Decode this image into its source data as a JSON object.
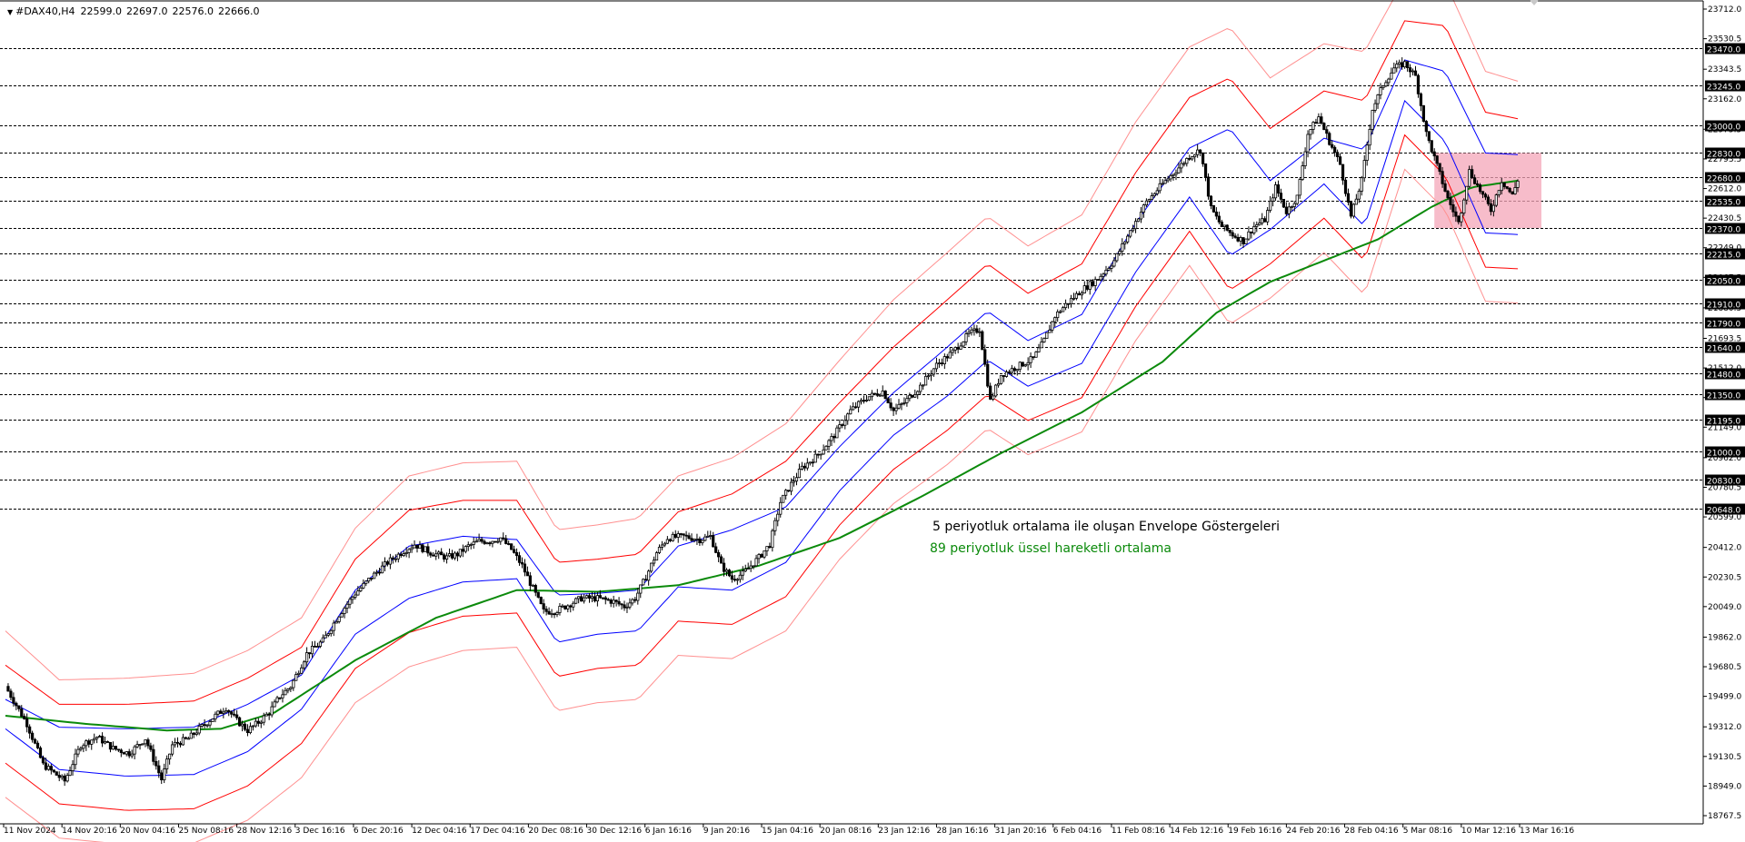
{
  "header": {
    "symbol": "#DAX40,H4",
    "open": "22599.0",
    "high": "22697.0",
    "low": "22576.0",
    "close": "22666.0"
  },
  "annotations": {
    "envelope": "5 periyotluk ortalama ile oluşan Envelope Göstergeleri",
    "ema": "89 periyotluk üssel hareketli ortalama"
  },
  "colors": {
    "price": "#000000",
    "ema": "#0b8a0b",
    "envelope_inner": "#0000ff",
    "envelope_mid": "#ff0000",
    "envelope_outer": "#ff9090",
    "zone": "#f4a6b8",
    "level_line": "#000000"
  },
  "chart_data": {
    "type": "line",
    "x_tick_labels": [
      "11 Nov 2024",
      "14 Nov 20:16",
      "20 Nov 04:16",
      "25 Nov 08:16",
      "28 Nov 12:16",
      "3 Dec 16:16",
      "6 Dec 20:16",
      "12 Dec 04:16",
      "17 Dec 04:16",
      "20 Dec 08:16",
      "30 Dec 12:16",
      "6 Jan 16:16",
      "9 Jan 20:16",
      "15 Jan 04:16",
      "20 Jan 08:16",
      "23 Jan 12:16",
      "28 Jan 16:16",
      "31 Jan 20:16",
      "6 Feb 04:16",
      "11 Feb 08:16",
      "14 Feb 12:16",
      "19 Feb 16:16",
      "24 Feb 20:16",
      "28 Feb 04:16",
      "5 Mar 08:16",
      "10 Mar 12:16",
      "13 Mar 16:16"
    ],
    "y_tick_labels": [
      "23712.0",
      "23530.5",
      "23343.5",
      "23162.0",
      "22975.5",
      "22793.5",
      "22612.0",
      "22430.5",
      "22249.0",
      "22067.5",
      "21880.5",
      "21693.5",
      "21512.0",
      "21330.5",
      "21149.0",
      "20962.0",
      "20780.5",
      "20599.0",
      "20412.0",
      "20230.5",
      "20049.0",
      "19862.0",
      "19680.5",
      "19499.0",
      "19312.0",
      "19130.5",
      "18949.0",
      "18767.5"
    ],
    "ylim": [
      18767.5,
      23712.0
    ],
    "horizontal_levels": [
      23470.0,
      23245.0,
      23000.0,
      22830.0,
      22680.0,
      22535.0,
      22370.0,
      22215.0,
      22050.0,
      21910.0,
      21790.0,
      21640.0,
      21480.0,
      21350.0,
      21195.0,
      21000.0,
      20830.0,
      20648.0
    ],
    "level_labels": [
      "23470.0",
      "23245.0",
      "23000.0",
      "22830.0",
      "22680.0",
      "22535.0",
      "22370.0",
      "22215.0",
      "22050.0",
      "21910.0",
      "21790.0",
      "21640.0",
      "21480.0",
      "21350.0",
      "21195.0",
      "21000.0",
      "20830.0",
      "20648.0"
    ],
    "price_path": [
      [
        0,
        19560
      ],
      [
        8,
        19330
      ],
      [
        14,
        19080
      ],
      [
        22,
        18980
      ],
      [
        28,
        19200
      ],
      [
        34,
        19250
      ],
      [
        40,
        19180
      ],
      [
        46,
        19150
      ],
      [
        52,
        19240
      ],
      [
        58,
        18990
      ],
      [
        62,
        19200
      ],
      [
        68,
        19240
      ],
      [
        72,
        19300
      ],
      [
        78,
        19380
      ],
      [
        82,
        19430
      ],
      [
        86,
        19350
      ],
      [
        90,
        19290
      ],
      [
        94,
        19340
      ],
      [
        98,
        19400
      ],
      [
        102,
        19500
      ],
      [
        106,
        19560
      ],
      [
        112,
        19760
      ],
      [
        118,
        19840
      ],
      [
        124,
        20000
      ],
      [
        130,
        20130
      ],
      [
        136,
        20230
      ],
      [
        142,
        20320
      ],
      [
        148,
        20390
      ],
      [
        152,
        20430
      ],
      [
        158,
        20380
      ],
      [
        164,
        20350
      ],
      [
        168,
        20370
      ],
      [
        172,
        20420
      ],
      [
        176,
        20450
      ],
      [
        180,
        20450
      ],
      [
        184,
        20470
      ],
      [
        188,
        20400
      ],
      [
        192,
        20300
      ],
      [
        196,
        20160
      ],
      [
        200,
        20020
      ],
      [
        204,
        20020
      ],
      [
        208,
        20050
      ],
      [
        214,
        20100
      ],
      [
        220,
        20100
      ],
      [
        226,
        20080
      ],
      [
        230,
        20050
      ],
      [
        234,
        20100
      ],
      [
        238,
        20230
      ],
      [
        242,
        20380
      ],
      [
        246,
        20470
      ],
      [
        252,
        20480
      ],
      [
        258,
        20460
      ],
      [
        262,
        20480
      ],
      [
        266,
        20300
      ],
      [
        270,
        20220
      ],
      [
        274,
        20250
      ],
      [
        280,
        20350
      ],
      [
        284,
        20430
      ],
      [
        288,
        20690
      ],
      [
        292,
        20800
      ],
      [
        296,
        20900
      ],
      [
        302,
        20980
      ],
      [
        308,
        21100
      ],
      [
        314,
        21250
      ],
      [
        320,
        21330
      ],
      [
        326,
        21370
      ],
      [
        330,
        21250
      ],
      [
        334,
        21300
      ],
      [
        340,
        21400
      ],
      [
        346,
        21530
      ],
      [
        352,
        21610
      ],
      [
        358,
        21720
      ],
      [
        362,
        21750
      ],
      [
        366,
        21310
      ],
      [
        370,
        21470
      ],
      [
        376,
        21520
      ],
      [
        382,
        21570
      ],
      [
        386,
        21680
      ],
      [
        390,
        21830
      ],
      [
        394,
        21900
      ],
      [
        400,
        21990
      ],
      [
        406,
        22060
      ],
      [
        412,
        22170
      ],
      [
        418,
        22350
      ],
      [
        424,
        22530
      ],
      [
        430,
        22640
      ],
      [
        436,
        22740
      ],
      [
        440,
        22810
      ],
      [
        444,
        22850
      ],
      [
        448,
        22490
      ],
      [
        452,
        22380
      ],
      [
        456,
        22330
      ],
      [
        460,
        22290
      ],
      [
        464,
        22380
      ],
      [
        468,
        22420
      ],
      [
        472,
        22620
      ],
      [
        476,
        22470
      ],
      [
        480,
        22560
      ],
      [
        484,
        22950
      ],
      [
        488,
        23050
      ],
      [
        492,
        22900
      ],
      [
        496,
        22760
      ],
      [
        500,
        22440
      ],
      [
        504,
        22660
      ],
      [
        508,
        23100
      ],
      [
        512,
        23250
      ],
      [
        516,
        23350
      ],
      [
        520,
        23380
      ],
      [
        524,
        23300
      ],
      [
        528,
        22950
      ],
      [
        532,
        22750
      ],
      [
        536,
        22550
      ],
      [
        540,
        22400
      ],
      [
        544,
        22720
      ],
      [
        548,
        22600
      ],
      [
        552,
        22480
      ],
      [
        556,
        22660
      ],
      [
        560,
        22570
      ],
      [
        562,
        22666
      ]
    ],
    "ema_path": [
      [
        0,
        19380
      ],
      [
        30,
        19330
      ],
      [
        60,
        19290
      ],
      [
        80,
        19300
      ],
      [
        100,
        19400
      ],
      [
        130,
        19720
      ],
      [
        160,
        19980
      ],
      [
        190,
        20150
      ],
      [
        220,
        20140
      ],
      [
        250,
        20180
      ],
      [
        280,
        20300
      ],
      [
        310,
        20470
      ],
      [
        340,
        20720
      ],
      [
        370,
        20990
      ],
      [
        400,
        21240
      ],
      [
        430,
        21550
      ],
      [
        450,
        21850
      ],
      [
        470,
        22040
      ],
      [
        490,
        22170
      ],
      [
        510,
        22300
      ],
      [
        530,
        22500
      ],
      [
        545,
        22620
      ],
      [
        562,
        22660
      ]
    ],
    "envelope_inner_upper": [
      [
        0,
        19480
      ],
      [
        20,
        19310
      ],
      [
        45,
        19300
      ],
      [
        70,
        19310
      ],
      [
        90,
        19450
      ],
      [
        110,
        19630
      ],
      [
        130,
        20150
      ],
      [
        150,
        20420
      ],
      [
        170,
        20480
      ],
      [
        190,
        20460
      ],
      [
        205,
        20120
      ],
      [
        220,
        20130
      ],
      [
        235,
        20150
      ],
      [
        250,
        20420
      ],
      [
        270,
        20520
      ],
      [
        290,
        20660
      ],
      [
        310,
        21030
      ],
      [
        330,
        21360
      ],
      [
        350,
        21640
      ],
      [
        365,
        21860
      ],
      [
        380,
        21680
      ],
      [
        400,
        21840
      ],
      [
        420,
        22400
      ],
      [
        440,
        22860
      ],
      [
        455,
        22980
      ],
      [
        470,
        22660
      ],
      [
        490,
        22920
      ],
      [
        505,
        22850
      ],
      [
        520,
        23400
      ],
      [
        535,
        23330
      ],
      [
        550,
        22830
      ],
      [
        562,
        22820
      ]
    ],
    "envelope_inner_lower": [
      [
        0,
        19300
      ],
      [
        20,
        19050
      ],
      [
        45,
        19010
      ],
      [
        70,
        19020
      ],
      [
        90,
        19160
      ],
      [
        110,
        19420
      ],
      [
        130,
        19880
      ],
      [
        150,
        20100
      ],
      [
        170,
        20200
      ],
      [
        190,
        20220
      ],
      [
        205,
        19830
      ],
      [
        220,
        19880
      ],
      [
        235,
        19900
      ],
      [
        250,
        20170
      ],
      [
        270,
        20150
      ],
      [
        290,
        20320
      ],
      [
        310,
        20760
      ],
      [
        330,
        21100
      ],
      [
        350,
        21340
      ],
      [
        365,
        21560
      ],
      [
        380,
        21400
      ],
      [
        400,
        21540
      ],
      [
        420,
        22100
      ],
      [
        440,
        22560
      ],
      [
        455,
        22200
      ],
      [
        470,
        22360
      ],
      [
        490,
        22640
      ],
      [
        505,
        22380
      ],
      [
        520,
        23150
      ],
      [
        535,
        22900
      ],
      [
        550,
        22340
      ],
      [
        562,
        22330
      ]
    ],
    "envelope_mid_upper": [
      [
        0,
        19690
      ],
      [
        20,
        19450
      ],
      [
        45,
        19450
      ],
      [
        70,
        19470
      ],
      [
        90,
        19610
      ],
      [
        110,
        19800
      ],
      [
        130,
        20340
      ],
      [
        150,
        20640
      ],
      [
        170,
        20700
      ],
      [
        190,
        20700
      ],
      [
        205,
        20320
      ],
      [
        220,
        20340
      ],
      [
        235,
        20370
      ],
      [
        250,
        20630
      ],
      [
        270,
        20740
      ],
      [
        290,
        20940
      ],
      [
        310,
        21300
      ],
      [
        330,
        21640
      ],
      [
        350,
        21930
      ],
      [
        365,
        22150
      ],
      [
        380,
        21970
      ],
      [
        400,
        22150
      ],
      [
        420,
        22710
      ],
      [
        440,
        23170
      ],
      [
        455,
        23290
      ],
      [
        470,
        22980
      ],
      [
        490,
        23210
      ],
      [
        505,
        23150
      ],
      [
        520,
        23640
      ],
      [
        535,
        23610
      ],
      [
        550,
        23080
      ],
      [
        562,
        23040
      ]
    ],
    "envelope_outer_upper": [
      [
        0,
        19900
      ],
      [
        20,
        19600
      ],
      [
        45,
        19610
      ],
      [
        70,
        19640
      ],
      [
        90,
        19780
      ],
      [
        110,
        19980
      ],
      [
        130,
        20530
      ],
      [
        150,
        20850
      ],
      [
        170,
        20930
      ],
      [
        190,
        20940
      ],
      [
        205,
        20520
      ],
      [
        220,
        20550
      ],
      [
        235,
        20590
      ],
      [
        250,
        20850
      ],
      [
        270,
        20960
      ],
      [
        290,
        21170
      ],
      [
        310,
        21560
      ],
      [
        330,
        21930
      ],
      [
        350,
        22220
      ],
      [
        365,
        22440
      ],
      [
        380,
        22260
      ],
      [
        400,
        22450
      ],
      [
        420,
        23020
      ],
      [
        440,
        23480
      ],
      [
        455,
        23600
      ],
      [
        470,
        23290
      ],
      [
        490,
        23500
      ],
      [
        505,
        23450
      ],
      [
        520,
        23900
      ],
      [
        535,
        23880
      ],
      [
        550,
        23330
      ],
      [
        562,
        23270
      ]
    ],
    "zone": {
      "x_start": 531,
      "x_end": 562,
      "y_low": 22370.0,
      "y_high": 22830.0
    }
  }
}
